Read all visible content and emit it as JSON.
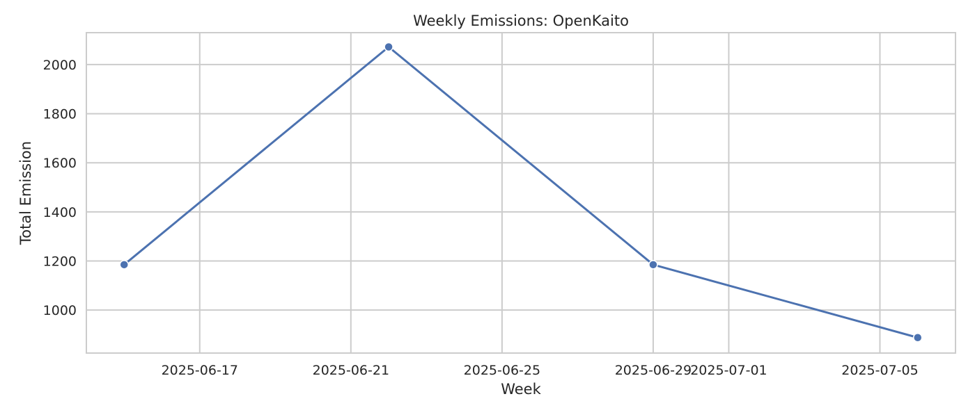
{
  "chart_data": {
    "type": "line",
    "title": "Weekly Emissions: OpenKaito",
    "xlabel": "Week",
    "ylabel": "Total Emission",
    "x": [
      "2025-06-15",
      "2025-06-22",
      "2025-06-29",
      "2025-07-06"
    ],
    "series": [
      {
        "values": [
          1185,
          2072,
          1185,
          888
        ]
      }
    ],
    "xlim": [
      "2025-06-14",
      "2025-07-07"
    ],
    "ylim": [
      825,
      2130
    ],
    "x_ticks": [
      "2025-06-17",
      "2025-06-21",
      "2025-06-25",
      "2025-06-29",
      "2025-07-01",
      "2025-07-05"
    ],
    "y_ticks": [
      1000,
      1200,
      1400,
      1600,
      1800,
      2000
    ],
    "grid": true,
    "line_color": "#4c72b0",
    "grid_color": "#cccccc",
    "spine_color": "#cccccc",
    "marker": "circle"
  }
}
